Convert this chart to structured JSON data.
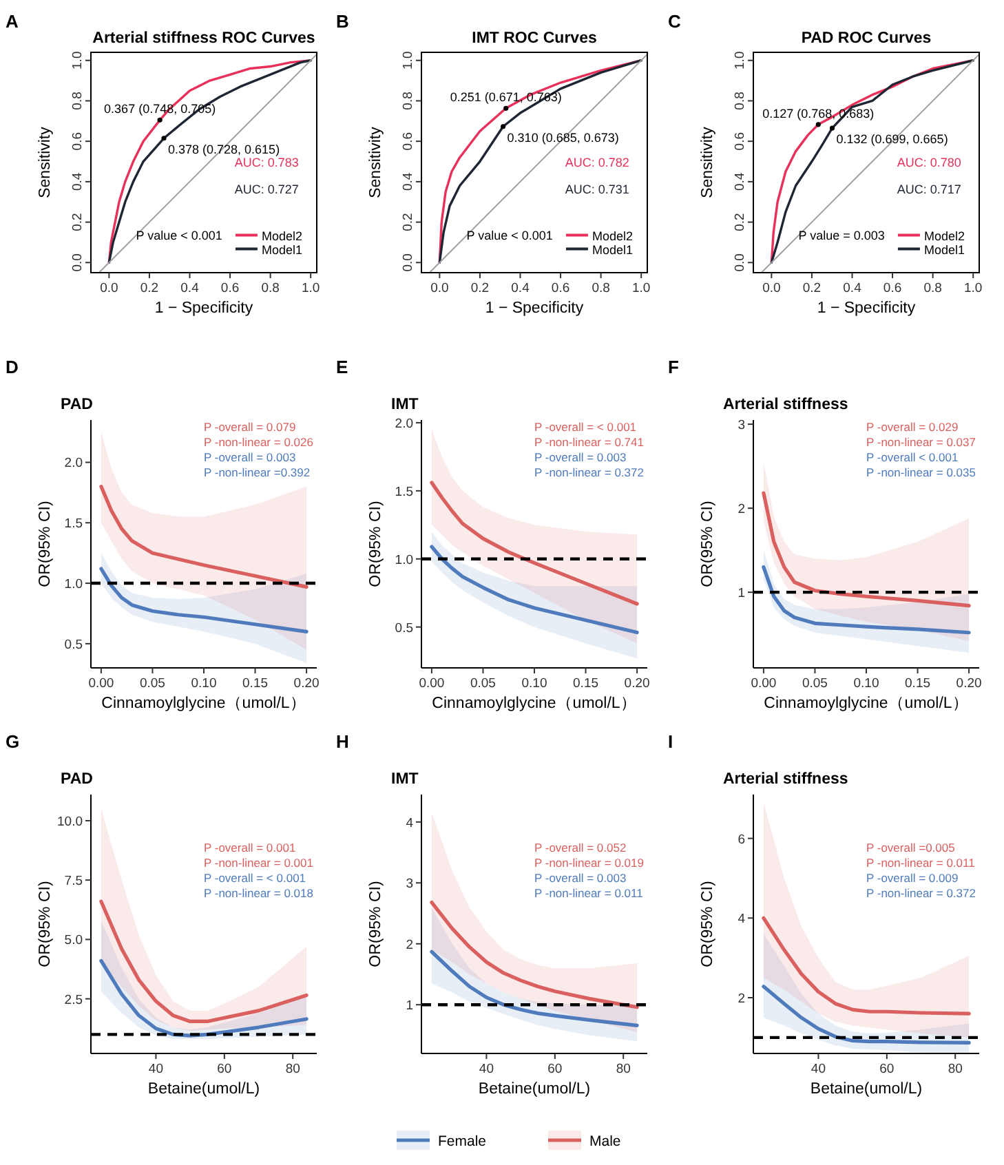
{
  "chart_data": [
    {
      "type": "line",
      "title": "Arterial stiffness ROC Curves",
      "xlabel": "1 − Specificity",
      "ylabel": "Sensitivity",
      "xlim": [
        -0.09,
        1.03
      ],
      "ylim": [
        -0.05,
        1.04
      ],
      "xticks": [
        {
          "value": 0,
          "label": "0.0"
        },
        {
          "value": 0.2,
          "label": "0.2"
        },
        {
          "value": 0.4,
          "label": "0.4"
        },
        {
          "value": 0.6,
          "label": "0.6"
        },
        {
          "value": 0.8,
          "label": "0.8"
        },
        {
          "value": 1,
          "label": "1.0"
        }
      ],
      "yticks": [
        {
          "value": 0,
          "label": "0.0"
        },
        {
          "value": 0.2,
          "label": "0.2"
        },
        {
          "value": 0.4,
          "label": "0.4"
        },
        {
          "value": 0.6,
          "label": "0.6"
        },
        {
          "value": 0.8,
          "label": "0.8"
        },
        {
          "value": 1,
          "label": "1.0"
        }
      ],
      "legend": "bottom right",
      "grid": false,
      "series": [
        {
          "name": "Model2",
          "color": "#e8305a",
          "x": [
            0,
            0.01,
            0.03,
            0.05,
            0.08,
            0.12,
            0.17,
            0.252,
            0.3,
            0.4,
            0.5,
            0.6,
            0.7,
            0.8,
            0.9,
            1
          ],
          "values": [
            0,
            0.1,
            0.2,
            0.3,
            0.4,
            0.5,
            0.6,
            0.705,
            0.76,
            0.85,
            0.9,
            0.93,
            0.96,
            0.97,
            0.99,
            1
          ]
        },
        {
          "name": "Model1",
          "color": "#1e2533",
          "x": [
            0,
            0.02,
            0.05,
            0.08,
            0.12,
            0.17,
            0.272,
            0.35,
            0.45,
            0.55,
            0.65,
            0.75,
            0.85,
            0.95,
            1
          ],
          "values": [
            0,
            0.1,
            0.2,
            0.3,
            0.4,
            0.5,
            0.615,
            0.68,
            0.76,
            0.82,
            0.87,
            0.91,
            0.95,
            0.99,
            1
          ]
        },
        {
          "type": "line",
          "color": "#a0a0a0",
          "x": [
            -0.05,
            1.03
          ],
          "values": [
            -0.05,
            1.03
          ]
        }
      ],
      "annotations": [
        "A",
        {
          "text": "0.367 (0.748, 0.705)",
          "x": 0.252,
          "y": 0.705
        },
        {
          "text": "0.378 (0.728, 0.615)",
          "x": 0.272,
          "y": 0.615
        },
        "AUC: 0.783",
        "AUC: 0.727",
        "P value < 0.001"
      ]
    },
    {
      "type": "line",
      "title": "IMT ROC Curves",
      "xlabel": "1 − Specificity",
      "ylabel": "Sensitivity",
      "xlim": [
        -0.09,
        1.03
      ],
      "ylim": [
        -0.05,
        1.04
      ],
      "xticks": [
        {
          "value": 0,
          "label": "0.0"
        },
        {
          "value": 0.2,
          "label": "0.2"
        },
        {
          "value": 0.4,
          "label": "0.4"
        },
        {
          "value": 0.6,
          "label": "0.6"
        },
        {
          "value": 0.8,
          "label": "0.8"
        },
        {
          "value": 1,
          "label": "1.0"
        }
      ],
      "yticks": [
        {
          "value": 0,
          "label": "0.0"
        },
        {
          "value": 0.2,
          "label": "0.2"
        },
        {
          "value": 0.4,
          "label": "0.4"
        },
        {
          "value": 0.6,
          "label": "0.6"
        },
        {
          "value": 0.8,
          "label": "0.8"
        },
        {
          "value": 1,
          "label": "1.0"
        }
      ],
      "legend": "bottom right",
      "grid": false,
      "series": [
        {
          "name": "Model2",
          "color": "#e8305a",
          "x": [
            0,
            0.01,
            0.03,
            0.06,
            0.1,
            0.2,
            0.329,
            0.45,
            0.6,
            0.8,
            1
          ],
          "values": [
            0,
            0.2,
            0.35,
            0.45,
            0.52,
            0.65,
            0.763,
            0.83,
            0.89,
            0.95,
            1
          ]
        },
        {
          "name": "Model1",
          "color": "#1e2533",
          "x": [
            0,
            0.02,
            0.05,
            0.1,
            0.2,
            0.315,
            0.4,
            0.5,
            0.6,
            0.8,
            1
          ],
          "values": [
            0,
            0.15,
            0.28,
            0.38,
            0.5,
            0.673,
            0.74,
            0.8,
            0.86,
            0.94,
            1
          ]
        },
        {
          "type": "line",
          "color": "#a0a0a0",
          "x": [
            -0.05,
            1.03
          ],
          "values": [
            -0.05,
            1.03
          ]
        }
      ],
      "annotations": [
        "B",
        {
          "text": "0.251 (0.671, 0.763)",
          "x": 0.329,
          "y": 0.763
        },
        {
          "text": "0.310 (0.685, 0.673)",
          "x": 0.315,
          "y": 0.673
        },
        "AUC: 0.782",
        "AUC: 0.731",
        "P value < 0.001"
      ]
    },
    {
      "type": "line",
      "title": "PAD ROC Curves",
      "xlabel": "1 − Specificity",
      "ylabel": "Sensitivity",
      "xlim": [
        -0.09,
        1.03
      ],
      "ylim": [
        -0.05,
        1.04
      ],
      "xticks": [
        {
          "value": 0,
          "label": "0.0"
        },
        {
          "value": 0.2,
          "label": "0.2"
        },
        {
          "value": 0.4,
          "label": "0.4"
        },
        {
          "value": 0.6,
          "label": "0.6"
        },
        {
          "value": 0.8,
          "label": "0.8"
        },
        {
          "value": 1,
          "label": "1.0"
        }
      ],
      "yticks": [
        {
          "value": 0,
          "label": "0.0"
        },
        {
          "value": 0.2,
          "label": "0.2"
        },
        {
          "value": 0.4,
          "label": "0.4"
        },
        {
          "value": 0.6,
          "label": "0.6"
        },
        {
          "value": 0.8,
          "label": "0.8"
        },
        {
          "value": 1,
          "label": "1.0"
        }
      ],
      "legend": "bottom right",
      "grid": false,
      "series": [
        {
          "name": "Model2",
          "color": "#e8305a",
          "x": [
            0,
            0.01,
            0.03,
            0.07,
            0.12,
            0.18,
            0.232,
            0.3,
            0.4,
            0.5,
            0.6,
            0.7,
            0.8,
            0.9,
            1
          ],
          "values": [
            0,
            0.15,
            0.3,
            0.45,
            0.55,
            0.63,
            0.683,
            0.72,
            0.78,
            0.83,
            0.87,
            0.92,
            0.96,
            0.98,
            1
          ]
        },
        {
          "name": "Model1",
          "color": "#1e2533",
          "x": [
            0,
            0.03,
            0.07,
            0.12,
            0.2,
            0.25,
            0.301,
            0.4,
            0.5,
            0.6,
            0.7,
            0.8,
            1
          ],
          "values": [
            0,
            0.1,
            0.25,
            0.38,
            0.5,
            0.58,
            0.665,
            0.77,
            0.8,
            0.88,
            0.92,
            0.95,
            1
          ]
        },
        {
          "type": "line",
          "color": "#a0a0a0",
          "x": [
            -0.05,
            1.03
          ],
          "values": [
            -0.05,
            1.03
          ]
        }
      ],
      "annotations": [
        "C",
        {
          "text": "0.127 (0.768, 0.683)",
          "x": 0.232,
          "y": 0.683
        },
        {
          "text": "0.132 (0.699, 0.665)",
          "x": 0.301,
          "y": 0.665
        },
        "AUC: 0.780",
        "AUC: 0.717",
        "P value = 0.003"
      ]
    },
    {
      "type": "line",
      "title": "PAD",
      "xlabel": "Cinnamoylglycine（umol/L）",
      "ylabel": "OR(95% CI)",
      "xlim": [
        -0.01,
        0.21
      ],
      "ylim": [
        0.3,
        2.35
      ],
      "xticks": [
        {
          "value": 0,
          "label": "0.00"
        },
        {
          "value": 0.05,
          "label": "0.05"
        },
        {
          "value": 0.1,
          "label": "0.10"
        },
        {
          "value": 0.15,
          "label": "0.15"
        },
        {
          "value": 0.2,
          "label": "0.20"
        }
      ],
      "yticks": [
        {
          "value": 0.5,
          "label": "0.5"
        },
        {
          "value": 1,
          "label": "1.0"
        },
        {
          "value": 1.5,
          "label": "1.5"
        },
        {
          "value": 2,
          "label": "2.0"
        }
      ],
      "grid": false,
      "ref_lines": [
        {
          "axis": "y",
          "value": 1,
          "color": "#000000",
          "line_style": "dashed"
        }
      ],
      "series": [
        {
          "color": "#4f7bbd",
          "x": [
            0,
            0.01,
            0.02,
            0.03,
            0.05,
            0.075,
            0.1,
            0.15,
            0.2
          ],
          "values": [
            1.12,
            0.98,
            0.88,
            0.82,
            0.77,
            0.74,
            0.72,
            0.66,
            0.6
          ],
          "lower": [
            1.0,
            0.88,
            0.8,
            0.74,
            0.68,
            0.64,
            0.6,
            0.5,
            0.34
          ],
          "upper": [
            1.25,
            1.1,
            0.98,
            0.92,
            0.88,
            0.87,
            0.88,
            0.95,
            1.08
          ]
        },
        {
          "color": "#d9605f",
          "x": [
            0,
            0.01,
            0.02,
            0.03,
            0.05,
            0.075,
            0.1,
            0.15,
            0.2
          ],
          "values": [
            1.8,
            1.6,
            1.45,
            1.35,
            1.25,
            1.2,
            1.15,
            1.06,
            0.97
          ],
          "lower": [
            1.5,
            1.35,
            1.2,
            1.1,
            1.0,
            0.95,
            0.9,
            0.7,
            0.45
          ],
          "upper": [
            2.25,
            1.95,
            1.75,
            1.65,
            1.58,
            1.55,
            1.55,
            1.65,
            1.8
          ]
        }
      ],
      "annotations": [
        "D",
        "P -overall = 0.079",
        "P -non-linear = 0.026",
        "P -overall = 0.003",
        "P -non-linear =0.392"
      ]
    },
    {
      "type": "line",
      "title": "IMT",
      "xlabel": "Cinnamoylglycine（umol/L）",
      "ylabel": "OR(95% CI)",
      "xlim": [
        -0.01,
        0.21
      ],
      "ylim": [
        0.2,
        2.02
      ],
      "xticks": [
        {
          "value": 0,
          "label": "0.00"
        },
        {
          "value": 0.05,
          "label": "0.05"
        },
        {
          "value": 0.1,
          "label": "0.10"
        },
        {
          "value": 0.15,
          "label": "0.15"
        },
        {
          "value": 0.2,
          "label": "0.20"
        }
      ],
      "yticks": [
        {
          "value": 0.5,
          "label": "0.5"
        },
        {
          "value": 1,
          "label": "1.0"
        },
        {
          "value": 1.5,
          "label": "1.5"
        },
        {
          "value": 2,
          "label": "2.0"
        }
      ],
      "grid": false,
      "ref_lines": [
        {
          "axis": "y",
          "value": 1,
          "color": "#000000",
          "line_style": "dashed"
        }
      ],
      "series": [
        {
          "color": "#4f7bbd",
          "x": [
            0,
            0.01,
            0.02,
            0.03,
            0.05,
            0.075,
            0.1,
            0.15,
            0.2
          ],
          "values": [
            1.09,
            1.0,
            0.93,
            0.87,
            0.79,
            0.7,
            0.64,
            0.55,
            0.46
          ],
          "lower": [
            0.98,
            0.9,
            0.83,
            0.77,
            0.68,
            0.58,
            0.5,
            0.38,
            0.27
          ],
          "upper": [
            1.2,
            1.1,
            1.03,
            0.97,
            0.9,
            0.84,
            0.8,
            0.8,
            0.8
          ]
        },
        {
          "color": "#d9605f",
          "x": [
            0,
            0.01,
            0.02,
            0.03,
            0.05,
            0.075,
            0.1,
            0.15,
            0.2
          ],
          "values": [
            1.56,
            1.45,
            1.35,
            1.26,
            1.15,
            1.05,
            0.97,
            0.82,
            0.67
          ],
          "lower": [
            1.25,
            1.18,
            1.1,
            1.05,
            0.95,
            0.85,
            0.75,
            0.55,
            0.38
          ],
          "upper": [
            1.95,
            1.75,
            1.6,
            1.5,
            1.38,
            1.3,
            1.25,
            1.2,
            1.18
          ]
        }
      ],
      "annotations": [
        "E",
        "P -overall = < 0.001",
        "P -non-linear = 0.741",
        "P -overall = 0.003",
        "P -non-linear = 0.372"
      ]
    },
    {
      "type": "line",
      "title": "Arterial stiffness",
      "xlabel": "Cinnamoylglycine（umol/L）",
      "ylabel": "OR(95% CI)",
      "xlim": [
        -0.01,
        0.21
      ],
      "ylim": [
        0.1,
        3.05
      ],
      "xticks": [
        {
          "value": 0,
          "label": "0.00"
        },
        {
          "value": 0.05,
          "label": "0.05"
        },
        {
          "value": 0.1,
          "label": "0.10"
        },
        {
          "value": 0.15,
          "label": "0.15"
        },
        {
          "value": 0.2,
          "label": "0.20"
        }
      ],
      "yticks": [
        1,
        2,
        3
      ],
      "grid": false,
      "ref_lines": [
        {
          "axis": "y",
          "value": 1,
          "color": "#000000",
          "line_style": "dashed"
        }
      ],
      "series": [
        {
          "color": "#4f7bbd",
          "x": [
            0,
            0.01,
            0.02,
            0.03,
            0.05,
            0.075,
            0.1,
            0.15,
            0.2
          ],
          "values": [
            1.3,
            0.95,
            0.78,
            0.7,
            0.63,
            0.61,
            0.59,
            0.56,
            0.52
          ],
          "lower": [
            1.15,
            0.82,
            0.68,
            0.6,
            0.52,
            0.48,
            0.44,
            0.36,
            0.28
          ],
          "upper": [
            1.5,
            1.1,
            0.92,
            0.85,
            0.8,
            0.8,
            0.82,
            0.88,
            0.98
          ]
        },
        {
          "color": "#d9605f",
          "x": [
            0,
            0.01,
            0.02,
            0.03,
            0.05,
            0.075,
            0.1,
            0.15,
            0.2
          ],
          "values": [
            2.18,
            1.6,
            1.3,
            1.12,
            1.02,
            0.98,
            0.95,
            0.9,
            0.84
          ],
          "lower": [
            1.85,
            1.35,
            1.1,
            0.95,
            0.8,
            0.72,
            0.65,
            0.55,
            0.42
          ],
          "upper": [
            2.55,
            1.9,
            1.6,
            1.45,
            1.4,
            1.38,
            1.42,
            1.6,
            1.88
          ]
        }
      ],
      "annotations": [
        "F",
        "P -overall = 0.029",
        "P -non-linear = 0.037",
        "P -overall < 0.001",
        "P -non-linear = 0.035"
      ]
    },
    {
      "type": "line",
      "title": "PAD",
      "xlabel": "Betaine(umol/L)",
      "ylabel": "OR(95% CI)",
      "xlim": [
        21,
        87
      ],
      "ylim": [
        0.2,
        11.1
      ],
      "xticks": [
        40,
        60,
        80
      ],
      "yticks": [
        {
          "value": 2.5,
          "label": "2.5"
        },
        {
          "value": 5,
          "label": "5.0"
        },
        {
          "value": 7.5,
          "label": "7.5"
        },
        {
          "value": 10,
          "label": "10.0"
        }
      ],
      "grid": false,
      "ref_lines": [
        {
          "axis": "y",
          "value": 1,
          "color": "#000000",
          "line_style": "dashed"
        }
      ],
      "series": [
        {
          "color": "#4f7bbd",
          "x": [
            24,
            30,
            35,
            40,
            45,
            50,
            55,
            60,
            70,
            84
          ],
          "values": [
            4.1,
            2.7,
            1.8,
            1.25,
            1.0,
            0.95,
            1.0,
            1.1,
            1.3,
            1.65
          ],
          "lower": [
            2.8,
            1.9,
            1.3,
            0.95,
            0.8,
            0.8,
            0.8,
            0.85,
            0.9,
            1.0
          ],
          "upper": [
            5.8,
            3.8,
            2.5,
            1.7,
            1.3,
            1.2,
            1.3,
            1.5,
            1.9,
            2.6
          ]
        },
        {
          "color": "#d9605f",
          "x": [
            24,
            30,
            35,
            40,
            45,
            50,
            55,
            60,
            70,
            84
          ],
          "values": [
            6.6,
            4.6,
            3.3,
            2.4,
            1.8,
            1.55,
            1.55,
            1.7,
            2.0,
            2.65
          ],
          "lower": [
            4.0,
            3.0,
            2.2,
            1.6,
            1.3,
            1.15,
            1.2,
            1.25,
            1.3,
            1.4
          ],
          "upper": [
            10.5,
            7.5,
            5.2,
            3.5,
            2.4,
            2.0,
            2.0,
            2.3,
            3.0,
            4.7
          ]
        }
      ],
      "annotations": [
        "G",
        "P -overall = 0.001",
        "P -non-linear = 0.001",
        "P -overall = < 0.001",
        "P -non-linear = 0.018"
      ]
    },
    {
      "type": "line",
      "title": "IMT",
      "xlabel": "Betaine(umol/L)",
      "ylabel": "OR(95% CI)",
      "xlim": [
        21,
        87
      ],
      "ylim": [
        0.2,
        4.45
      ],
      "xticks": [
        40,
        60,
        80
      ],
      "yticks": [
        1,
        2,
        3,
        4
      ],
      "grid": false,
      "legend": "bottom",
      "ref_lines": [
        {
          "axis": "y",
          "value": 1,
          "color": "#000000",
          "line_style": "dashed"
        }
      ],
      "series": [
        {
          "name": "Female",
          "color": "#4f7bbd",
          "x": [
            24,
            30,
            35,
            40,
            45,
            50,
            55,
            60,
            70,
            84
          ],
          "values": [
            1.87,
            1.55,
            1.3,
            1.12,
            1.0,
            0.92,
            0.86,
            0.82,
            0.75,
            0.66
          ],
          "lower": [
            1.35,
            1.2,
            1.05,
            0.95,
            0.85,
            0.75,
            0.67,
            0.6,
            0.5,
            0.4
          ],
          "upper": [
            2.6,
            2.0,
            1.6,
            1.35,
            1.2,
            1.1,
            1.05,
            1.02,
            1.0,
            1.0
          ]
        },
        {
          "name": "Male",
          "color": "#d9605f",
          "x": [
            24,
            30,
            35,
            40,
            45,
            50,
            55,
            60,
            70,
            84
          ],
          "values": [
            2.68,
            2.25,
            1.95,
            1.7,
            1.52,
            1.4,
            1.3,
            1.22,
            1.1,
            0.96
          ],
          "lower": [
            1.9,
            1.7,
            1.5,
            1.35,
            1.2,
            1.1,
            1.0,
            0.9,
            0.75,
            0.55
          ],
          "upper": [
            4.15,
            3.2,
            2.6,
            2.2,
            1.9,
            1.75,
            1.65,
            1.6,
            1.6,
            1.68
          ]
        }
      ],
      "annotations": [
        "H",
        "P -overall = 0.052",
        "P -non-linear = 0.019",
        "P -overall = 0.003",
        "P -non-linear = 0.011"
      ]
    },
    {
      "type": "line",
      "title": "Arterial stiffness",
      "xlabel": "Betaine(umol/L)",
      "ylabel": "OR(95% CI)",
      "xlim": [
        21,
        87
      ],
      "ylim": [
        0.6,
        7.1
      ],
      "xticks": [
        40,
        60,
        80
      ],
      "yticks": [
        2,
        4,
        6
      ],
      "grid": false,
      "ref_lines": [
        {
          "axis": "y",
          "value": 1,
          "color": "#000000",
          "line_style": "dashed"
        }
      ],
      "series": [
        {
          "color": "#4f7bbd",
          "x": [
            24,
            30,
            35,
            40,
            45,
            50,
            55,
            60,
            70,
            84
          ],
          "values": [
            2.28,
            1.85,
            1.5,
            1.22,
            1.02,
            0.92,
            0.9,
            0.9,
            0.88,
            0.87
          ],
          "lower": [
            1.5,
            1.3,
            1.1,
            0.95,
            0.8,
            0.72,
            0.7,
            0.68,
            0.62,
            0.61
          ],
          "upper": [
            3.6,
            2.8,
            2.1,
            1.6,
            1.3,
            1.15,
            1.1,
            1.12,
            1.2,
            1.35
          ]
        },
        {
          "color": "#d9605f",
          "x": [
            24,
            30,
            35,
            40,
            45,
            50,
            55,
            60,
            70,
            84
          ],
          "values": [
            4.0,
            3.2,
            2.6,
            2.15,
            1.85,
            1.7,
            1.65,
            1.65,
            1.62,
            1.6
          ],
          "lower": [
            2.5,
            2.2,
            1.9,
            1.6,
            1.4,
            1.3,
            1.25,
            1.2,
            1.1,
            1.0
          ],
          "upper": [
            6.9,
            5.0,
            3.8,
            3.0,
            2.4,
            2.2,
            2.2,
            2.3,
            2.5,
            3.05
          ]
        }
      ],
      "annotations": [
        "I",
        "P -overall =0.005",
        "P -non-linear = 0.011",
        "P -overall = 0.009",
        "P -non-linear = 0.372"
      ]
    }
  ]
}
